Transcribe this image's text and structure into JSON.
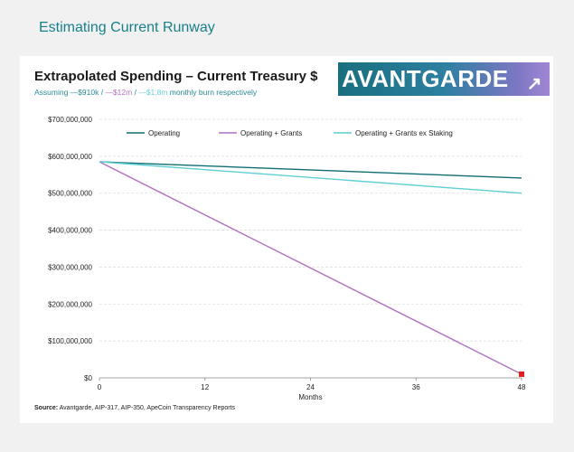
{
  "page": {
    "title": "Estimating Current Runway"
  },
  "header": {
    "chart_title": "Extrapolated Spending – Current Treasury $",
    "subtitle_prefix": "Assuming ",
    "subtitle_a": "—$910k",
    "subtitle_sep1": " / ",
    "subtitle_b": "—$12m",
    "subtitle_sep2": " / ",
    "subtitle_c": "—$1.8m",
    "subtitle_suffix": " monthly burn respectively",
    "logo_text": "AVANTGARDE",
    "logo_icon": "trend-arrow-icon"
  },
  "source": {
    "label": "Source:",
    "text": " Avantgarde, AIP-317, AIP-350, ApeCoin Transparency Reports"
  },
  "chart_data": {
    "type": "line",
    "title": "Extrapolated Spending – Current Treasury $",
    "xlabel": "Months",
    "ylabel": "",
    "xlim": [
      0,
      48
    ],
    "ylim": [
      0,
      700000000
    ],
    "xticks": [
      0,
      12,
      24,
      36,
      48
    ],
    "yticks": [
      0,
      100000000,
      200000000,
      300000000,
      400000000,
      500000000,
      600000000,
      700000000
    ],
    "ytick_labels": [
      "$0",
      "$100,000,000",
      "$200,000,000",
      "$300,000,000",
      "$400,000,000",
      "$500,000,000",
      "$600,000,000",
      "$700,000,000"
    ],
    "grid": true,
    "legend": "top",
    "series": [
      {
        "name": "Operating",
        "color": "#0f6e73",
        "x": [
          0,
          48
        ],
        "values": [
          585000000,
          541000000
        ]
      },
      {
        "name": "Operating + Grants",
        "color": "#b072c2",
        "x": [
          0,
          48
        ],
        "values": [
          585000000,
          10000000
        ]
      },
      {
        "name": "Operating + Grants ex Staking",
        "color": "#5fcfd3",
        "x": [
          0,
          48
        ],
        "values": [
          585000000,
          500000000
        ]
      }
    ],
    "annotations": [
      {
        "type": "marker",
        "x": 48,
        "y": 10000000,
        "color": "#e0201f"
      }
    ]
  }
}
